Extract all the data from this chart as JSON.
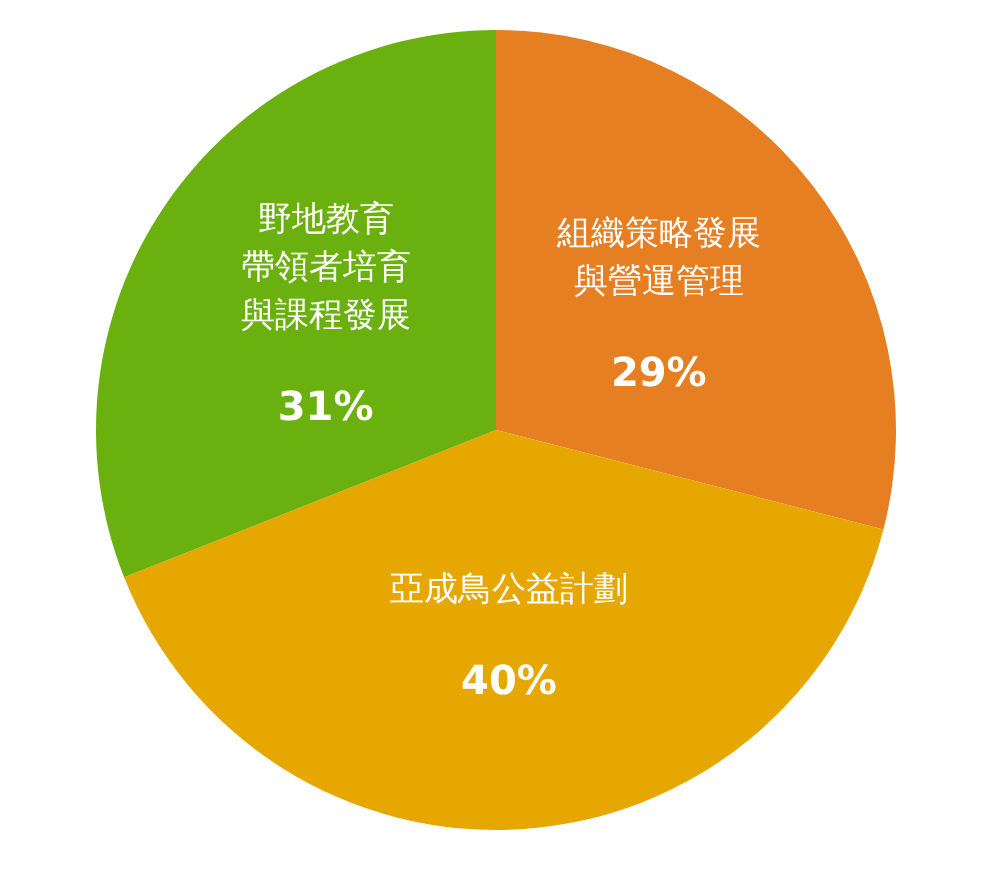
{
  "chart_data": {
    "type": "pie",
    "categories": [
      "組織策略發展與營運管理",
      "亞成鳥公益計劃",
      "野地教育帶領者培育與課程發展"
    ],
    "values": [
      29,
      40,
      31
    ],
    "value_labels": [
      "29%",
      "40%",
      "31%"
    ],
    "colors": [
      "#e67e22",
      "#e6a800",
      "#6ab00f"
    ],
    "legend": false
  }
}
